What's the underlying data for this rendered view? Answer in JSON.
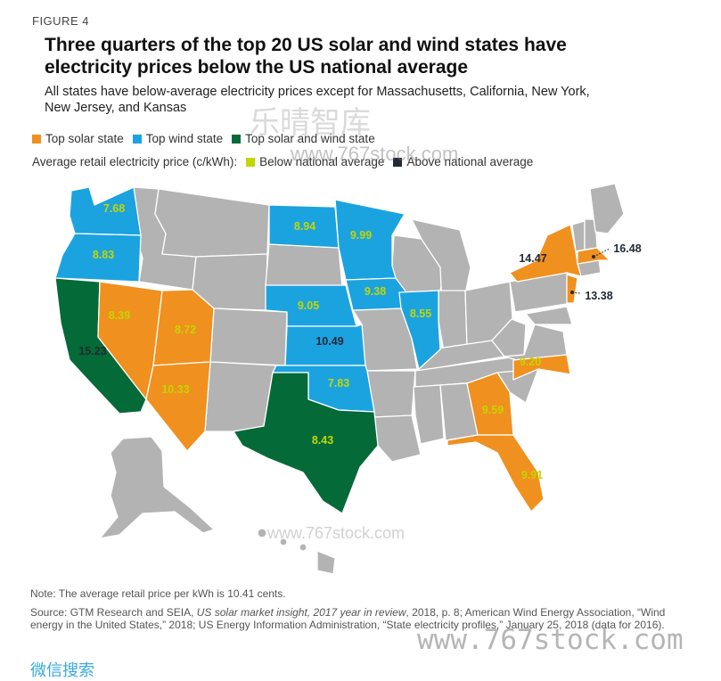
{
  "figure_label": "FIGURE 4",
  "title": "Three quarters of the top 20 US solar and wind states have electricity prices below the US national average",
  "subtitle": "All states have below-average electricity prices except for Massachusetts, California, New York, New Jersey, and Kansas",
  "legend": {
    "categories": [
      {
        "label": "Top solar state",
        "color": "#f0901e"
      },
      {
        "label": "Top wind state",
        "color": "#1ba3e0"
      },
      {
        "label": "Top solar and wind state",
        "color": "#046a38"
      }
    ],
    "price_label": "Average retail electricity price (c/kWh):",
    "price_classes": [
      {
        "label": "Below national average",
        "color": "#c4d600"
      },
      {
        "label": "Above national average",
        "color": "#222a35"
      }
    ]
  },
  "colors": {
    "other_state": "#b3b3b3",
    "border": "#ffffff"
  },
  "states": [
    {
      "abbr": "WA",
      "category": "wind",
      "price": "7.68",
      "price_class": "below"
    },
    {
      "abbr": "OR",
      "category": "wind",
      "price": "8.83",
      "price_class": "below"
    },
    {
      "abbr": "CA",
      "category": "solar_wind",
      "price": "15.23",
      "price_class": "above"
    },
    {
      "abbr": "NV",
      "category": "solar",
      "price": "8.39",
      "price_class": "below"
    },
    {
      "abbr": "UT",
      "category": "solar",
      "price": "8.72",
      "price_class": "below"
    },
    {
      "abbr": "AZ",
      "category": "solar",
      "price": "10.33",
      "price_class": "below"
    },
    {
      "abbr": "ND",
      "category": "wind",
      "price": "8.94",
      "price_class": "below"
    },
    {
      "abbr": "MN",
      "category": "wind",
      "price": "9.99",
      "price_class": "below"
    },
    {
      "abbr": "NE",
      "category": "wind",
      "price": "9.05",
      "price_class": "below"
    },
    {
      "abbr": "IA",
      "category": "wind",
      "price": "9.38",
      "price_class": "below"
    },
    {
      "abbr": "IL",
      "category": "wind",
      "price": "8.55",
      "price_class": "below"
    },
    {
      "abbr": "KS",
      "category": "wind",
      "price": "10.49",
      "price_class": "above"
    },
    {
      "abbr": "OK",
      "category": "wind",
      "price": "7.83",
      "price_class": "below"
    },
    {
      "abbr": "TX",
      "category": "solar_wind",
      "price": "8.43",
      "price_class": "below"
    },
    {
      "abbr": "NY",
      "category": "solar",
      "price": "14.47",
      "price_class": "above"
    },
    {
      "abbr": "MA",
      "category": "solar",
      "price": "16.48",
      "price_class": "above"
    },
    {
      "abbr": "NJ",
      "category": "solar",
      "price": "13.38",
      "price_class": "above"
    },
    {
      "abbr": "NC",
      "category": "solar",
      "price": "9.20",
      "price_class": "below"
    },
    {
      "abbr": "GA",
      "category": "solar",
      "price": "9.59",
      "price_class": "below"
    },
    {
      "abbr": "FL",
      "category": "solar",
      "price": "9.91",
      "price_class": "below"
    }
  ],
  "note": "Note: The average retail price per kWh is 10.41 cents.",
  "source": {
    "prefix": "Source: GTM Research and SEIA, ",
    "title1": "US solar market insight, 2017 year in review",
    "rest": ", 2018, p. 8; American Wind Energy Association, “Wind energy in the United States,” 2018; US Energy Information Administration, “State electricity profiles,” January 25, 2018 (data for 2016)."
  },
  "watermarks": {
    "cn_top": "乐晴智库",
    "site_mid": "www.767stock.com",
    "site_bottom": "www.767stock.com",
    "site_map": "www.767stock.com",
    "cn_bottom": "微信搜索"
  }
}
